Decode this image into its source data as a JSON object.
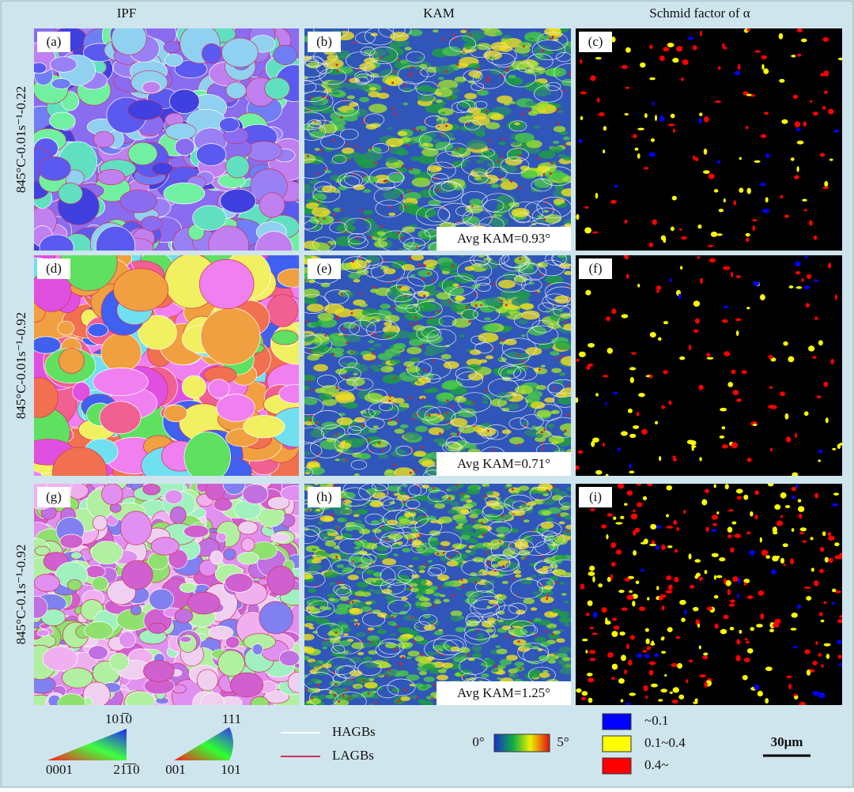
{
  "column_headers": [
    "IPF",
    "KAM",
    "Schmid factor of α"
  ],
  "row_labels": [
    "845°C-0.01s⁻¹-0.22",
    "845°C-0.01s⁻¹-0.92",
    "845°C-0.1s⁻¹-0.92"
  ],
  "panels": [
    {
      "label": "(a)"
    },
    {
      "label": "(b)",
      "annotation": "Avg KAM=0.93°"
    },
    {
      "label": "(c)"
    },
    {
      "label": "(d)"
    },
    {
      "label": "(e)",
      "annotation": "Avg KAM=0.71°"
    },
    {
      "label": "(f)"
    },
    {
      "label": "(g)"
    },
    {
      "label": "(h)",
      "annotation": "Avg KAM=1.25°"
    },
    {
      "label": "(i)"
    }
  ],
  "legend": {
    "ipf_hcp": {
      "top": "101̅0",
      "left": "0001",
      "right": "21̅1̅0"
    },
    "ipf_cubic": {
      "top": "111",
      "left": "001",
      "right": "101"
    },
    "boundaries": [
      {
        "label": "HAGBs",
        "color": "#ffffff"
      },
      {
        "label": "LAGBs",
        "color": "#d0305a"
      }
    ],
    "kam_scale": {
      "min": "0°",
      "max": "5°"
    },
    "schmid": [
      {
        "label": "~0.1",
        "color": "#0000ff"
      },
      {
        "label": "0.1~0.4",
        "color": "#ffff00"
      },
      {
        "label": "0.4~",
        "color": "#ff0000"
      }
    ],
    "scale_bar": "30μm"
  }
}
